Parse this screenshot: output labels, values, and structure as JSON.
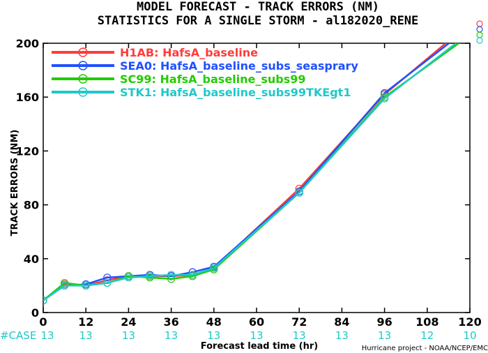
{
  "chart_data": {
    "type": "line",
    "title": "MODEL FORECAST - TRACK ERRORS (NM)",
    "subtitle": "STATISTICS FOR A SINGLE STORM - al182020_RENE",
    "xlabel": "Forecast lead time (hr)",
    "ylabel": "TRACK ERRORS (NM)",
    "xlim": [
      0,
      120
    ],
    "ylim": [
      0,
      200
    ],
    "x_ticks": [
      0,
      12,
      24,
      36,
      48,
      60,
      72,
      84,
      96,
      108,
      120
    ],
    "y_ticks": [
      0,
      40,
      80,
      120,
      160,
      200
    ],
    "legend_position": "top-left",
    "x": [
      0,
      6,
      12,
      18,
      24,
      30,
      36,
      42,
      48,
      72,
      96,
      120
    ],
    "series": [
      {
        "name": "H1AB: HafsA_baseline",
        "color": "#ff3c3c",
        "values": [
          9,
          21,
          20,
          24,
          27,
          27,
          27,
          28,
          33,
          92,
          162,
          215
        ]
      },
      {
        "name": "SEA0: HafsA_baseline_subs_seasprary",
        "color": "#2050ff",
        "values": [
          9,
          20,
          21,
          26,
          27,
          28,
          27,
          30,
          34,
          90,
          163,
          212
        ]
      },
      {
        "name": "SC99: HafsA_baseline_subs99",
        "color": "#22cc00",
        "values": [
          9,
          22,
          20,
          22,
          27,
          26,
          25,
          27,
          32,
          89,
          160,
          206
        ]
      },
      {
        "name": "STK1: HafsA_baseline_subs99TKEgt1",
        "color": "#20c8c8",
        "values": [
          9,
          20,
          20,
          22,
          26,
          27,
          28,
          28,
          33,
          89,
          159,
          208
        ]
      }
    ],
    "case_label": "#CASE",
    "case_counts": [
      "13",
      "13",
      "13",
      "13",
      "13",
      "13",
      "13",
      "13",
      "13",
      "13",
      "12",
      "10"
    ],
    "credit": "Hurricane project - NOAA/NCEP/EMC"
  }
}
